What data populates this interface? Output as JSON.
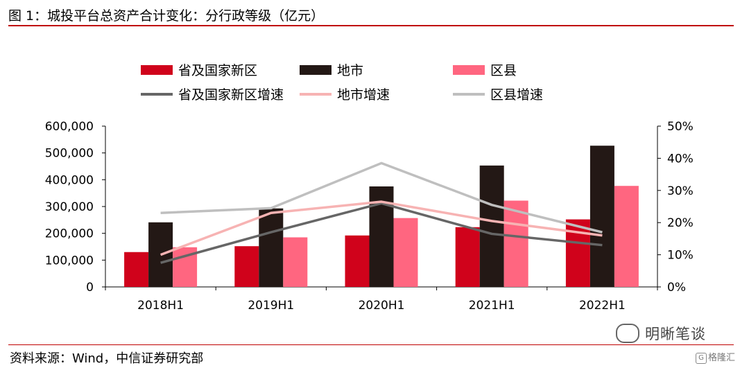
{
  "header": {
    "title": "图 1：城投平台总资产合计变化：分行政等级（亿元）"
  },
  "footer": {
    "source": "资料来源：Wind，中信证券研究部"
  },
  "watermark": {
    "text": "明晰笔谈",
    "icon": "wechat-icon"
  },
  "brand": {
    "text": "格隆汇",
    "icon": "gelonghui-logo-icon"
  },
  "chart_data": {
    "type": "bar",
    "categories": [
      "2018H1",
      "2019H1",
      "2020H1",
      "2021H1",
      "2022H1"
    ],
    "series": [
      {
        "name": "省及国家新区",
        "values": [
          130000,
          152000,
          192000,
          223000,
          252000
        ],
        "color": "#d0021b"
      },
      {
        "name": "地市",
        "values": [
          241000,
          293000,
          375000,
          453000,
          527000
        ],
        "color": "#231815"
      },
      {
        "name": "区县",
        "values": [
          148000,
          185000,
          257000,
          322000,
          377000
        ],
        "color": "#ff6680"
      }
    ],
    "line_series": [
      {
        "name": "省及国家新区增速",
        "values": [
          7.5,
          17.0,
          26.0,
          16.5,
          13.0
        ],
        "color": "#666666"
      },
      {
        "name": "地市增速",
        "values": [
          10.0,
          23.0,
          26.5,
          20.5,
          16.0
        ],
        "color": "#f7b3b3"
      },
      {
        "name": "区县增速",
        "values": [
          23.0,
          24.5,
          38.5,
          25.5,
          17.0
        ],
        "color": "#bfbfbf"
      }
    ],
    "ylim": [
      0,
      600000
    ],
    "y_ticks": [
      "0",
      "100,000",
      "200,000",
      "300,000",
      "400,000",
      "500,000",
      "600,000"
    ],
    "y2lim": [
      0,
      50
    ],
    "y2_ticks": [
      "0%",
      "10%",
      "20%",
      "30%",
      "40%",
      "50%"
    ],
    "legend_position": "top",
    "grid": false
  }
}
